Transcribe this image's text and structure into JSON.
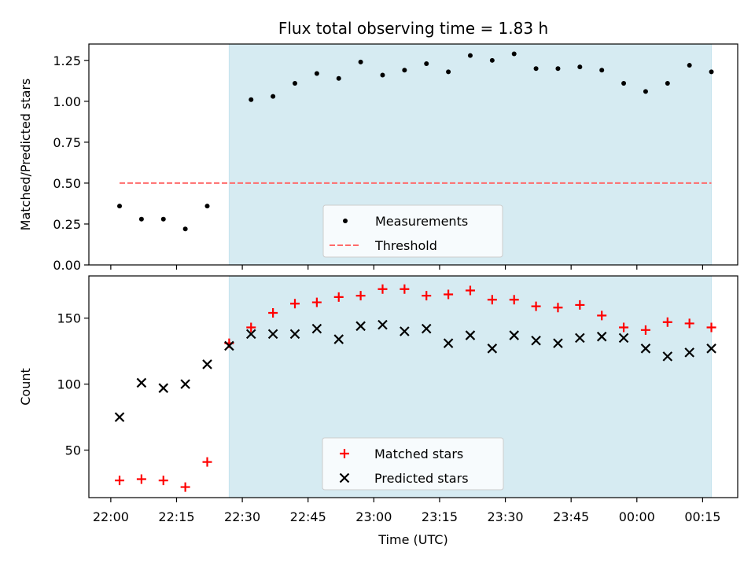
{
  "chart_data": [
    {
      "type": "scatter",
      "title": "Flux total observing time = 1.83 h",
      "xlabel": "",
      "ylabel": "Matched/Predicted stars",
      "ylim": [
        0,
        1.35
      ],
      "yticks": [
        0,
        0.25,
        0.5,
        0.75,
        1.0,
        1.25
      ],
      "ytick_labels": [
        "0.00",
        "0.25",
        "0.50",
        "0.75",
        "1.00",
        "1.25"
      ],
      "xlim": [
        "21:55",
        "00:23"
      ],
      "shaded_region": {
        "from": "22:27",
        "to": "00:17",
        "color": "#add8e6"
      },
      "legend_position": "lower center",
      "grid": false,
      "series": [
        {
          "name": "Measurements",
          "marker": "dot",
          "color": "#000000",
          "x": [
            "22:02",
            "22:07",
            "22:12",
            "22:17",
            "22:22",
            "22:32",
            "22:37",
            "22:42",
            "22:47",
            "22:52",
            "22:57",
            "23:02",
            "23:07",
            "23:12",
            "23:17",
            "23:22",
            "23:27",
            "23:32",
            "23:37",
            "23:42",
            "23:47",
            "23:52",
            "23:57",
            "00:02",
            "00:07",
            "00:12",
            "00:17"
          ],
          "y": [
            0.36,
            0.28,
            0.28,
            0.22,
            0.36,
            1.01,
            1.03,
            1.11,
            1.17,
            1.14,
            1.24,
            1.16,
            1.19,
            1.23,
            1.18,
            1.28,
            1.25,
            1.29,
            1.2,
            1.2,
            1.21,
            1.19,
            1.11,
            1.06,
            1.11,
            1.22,
            1.18
          ]
        },
        {
          "name": "Threshold",
          "style": "dashed",
          "color": "#ff6b6b",
          "x": [
            "22:02",
            "00:17"
          ],
          "y": [
            0.5,
            0.5
          ]
        }
      ]
    },
    {
      "type": "scatter",
      "title": "",
      "xlabel": "Time (UTC)",
      "ylabel": "Count",
      "ylim": [
        14,
        182
      ],
      "yticks": [
        50,
        100,
        150
      ],
      "ytick_labels": [
        "50",
        "100",
        "150"
      ],
      "xlim": [
        "21:55",
        "00:23"
      ],
      "xticks": [
        "22:00",
        "22:15",
        "22:30",
        "22:45",
        "23:00",
        "23:15",
        "23:30",
        "23:45",
        "00:00",
        "00:15"
      ],
      "xtick_labels": [
        "22:00",
        "22:15",
        "22:30",
        "22:45",
        "23:00",
        "23:15",
        "23:30",
        "23:45",
        "00:00",
        "00:15"
      ],
      "shaded_region": {
        "from": "22:27",
        "to": "00:17",
        "color": "#add8e6"
      },
      "legend_position": "lower center",
      "grid": false,
      "series": [
        {
          "name": "Matched stars",
          "marker": "plus",
          "color": "#ff0000",
          "x": [
            "22:02",
            "22:07",
            "22:12",
            "22:17",
            "22:22",
            "22:27",
            "22:32",
            "22:37",
            "22:42",
            "22:47",
            "22:52",
            "22:57",
            "23:02",
            "23:07",
            "23:12",
            "23:17",
            "23:22",
            "23:27",
            "23:32",
            "23:37",
            "23:42",
            "23:47",
            "23:52",
            "23:57",
            "00:02",
            "00:07",
            "00:12",
            "00:17"
          ],
          "y": [
            27,
            28,
            27,
            22,
            41,
            131,
            143,
            154,
            161,
            162,
            166,
            167,
            172,
            172,
            167,
            168,
            171,
            164,
            164,
            159,
            158,
            160,
            152,
            143,
            141,
            147,
            146,
            143
          ]
        },
        {
          "name": "Predicted stars",
          "marker": "x",
          "color": "#000000",
          "x": [
            "22:02",
            "22:07",
            "22:12",
            "22:17",
            "22:22",
            "22:27",
            "22:32",
            "22:37",
            "22:42",
            "22:47",
            "22:52",
            "22:57",
            "23:02",
            "23:07",
            "23:12",
            "23:17",
            "23:22",
            "23:27",
            "23:32",
            "23:37",
            "23:42",
            "23:47",
            "23:52",
            "23:57",
            "00:02",
            "00:07",
            "00:12",
            "00:17"
          ],
          "y": [
            75,
            101,
            97,
            100,
            115,
            129,
            138,
            138,
            138,
            142,
            134,
            144,
            145,
            140,
            142,
            131,
            137,
            127,
            137,
            133,
            131,
            135,
            136,
            135,
            127,
            121,
            124,
            127
          ]
        }
      ]
    }
  ]
}
